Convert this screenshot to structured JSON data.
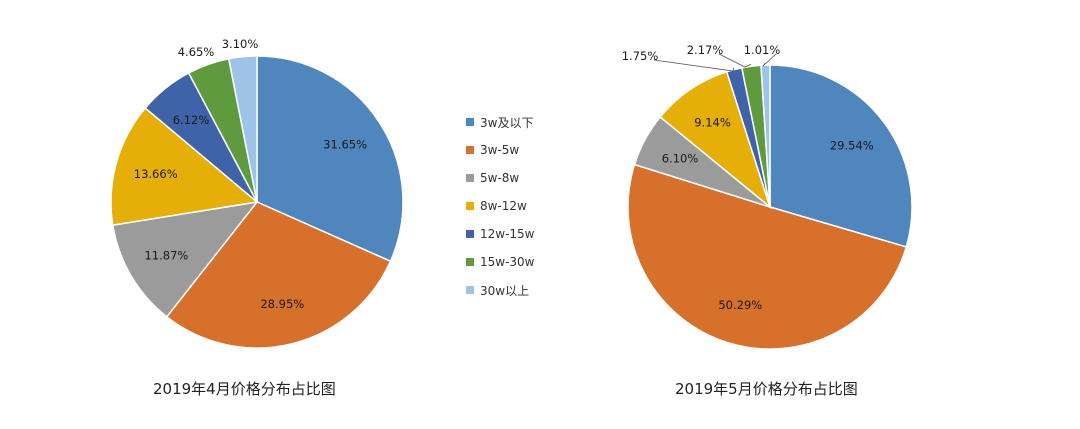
{
  "legend": {
    "items": [
      {
        "label": "3w及以下",
        "color": "#4F86BE"
      },
      {
        "label": "3w-5w",
        "color": "#D6702B"
      },
      {
        "label": "5w-8w",
        "color": "#9B9B9B"
      },
      {
        "label": "8w-12w",
        "color": "#E6AE08"
      },
      {
        "label": "12w-15w",
        "color": "#3E63A8"
      },
      {
        "label": "15w-30w",
        "color": "#5F9B3E"
      },
      {
        "label": "30w以上",
        "color": "#9DC3E6"
      }
    ]
  },
  "chart_data": [
    {
      "type": "pie",
      "title": "2019年4月价格分布占比图",
      "categories": [
        "3w及以下",
        "3w-5w",
        "5w-8w",
        "8w-12w",
        "12w-15w",
        "15w-30w",
        "30w以上"
      ],
      "values": [
        31.65,
        28.95,
        11.87,
        13.66,
        6.12,
        4.65,
        3.1
      ],
      "data_labels": [
        "31.65%",
        "28.95%",
        "11.87%",
        "13.66%",
        "6.12%",
        "4.65%",
        "3.10%"
      ],
      "legend_placement": "right"
    },
    {
      "type": "pie",
      "title": "2019年5月价格分布占比图",
      "categories": [
        "3w及以下",
        "3w-5w",
        "5w-8w",
        "8w-12w",
        "12w-15w",
        "15w-30w",
        "30w以上"
      ],
      "values": [
        29.54,
        50.29,
        6.1,
        9.14,
        1.75,
        2.17,
        1.01
      ],
      "data_labels": [
        "29.54%",
        "50.29%",
        "6.10%",
        "9.14%",
        "1.75%",
        "2.17%",
        "1.01%"
      ],
      "legend_placement": "left"
    }
  ]
}
